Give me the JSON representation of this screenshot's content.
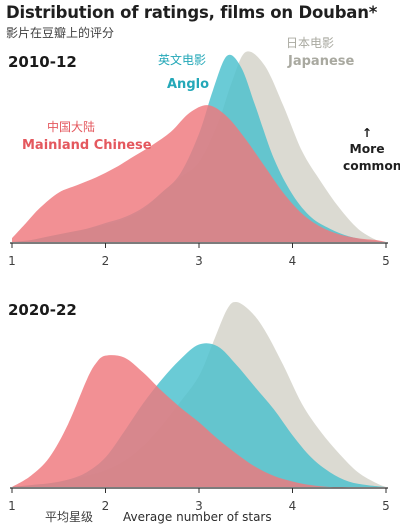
{
  "header": {
    "title": "Distribution of ratings, films on Douban*",
    "subtitle_zh": "影片在豆瓣上的评分"
  },
  "annotation": {
    "arrow": "↑",
    "line1": "More",
    "line2": "common"
  },
  "xlabel": {
    "zh": "平均星级",
    "en": "Average number of stars"
  },
  "colors": {
    "mainland": "#ef777d",
    "anglo": "#49bfcd",
    "japanese": "#d3d2c8",
    "mainland_label": "#e4585e",
    "anglo_label": "#24a8b8",
    "japanese_label": "#a9a9a0",
    "axis": "#2f2f2f"
  },
  "chart_data": [
    {
      "type": "area",
      "title": "2010-12",
      "xlabel": "Average number of stars",
      "ylabel": "",
      "xlim": [
        1,
        5
      ],
      "ylim": [
        0,
        1
      ],
      "x_ticks": [
        1,
        2,
        3,
        4,
        5
      ],
      "series": [
        {
          "name": "Japanese",
          "name_zh": "日本电影",
          "color_key": "japanese",
          "x": [
            1.0,
            1.2,
            1.4,
            1.6,
            1.8,
            2.0,
            2.2,
            2.4,
            2.6,
            2.8,
            3.0,
            3.2,
            3.35,
            3.5,
            3.7,
            3.9,
            4.1,
            4.3,
            4.5,
            4.7,
            4.9,
            5.0
          ],
          "y": [
            0.0,
            0.01,
            0.03,
            0.05,
            0.07,
            0.09,
            0.12,
            0.17,
            0.26,
            0.34,
            0.42,
            0.62,
            0.84,
            1.0,
            0.93,
            0.72,
            0.48,
            0.32,
            0.18,
            0.07,
            0.01,
            0.0
          ]
        },
        {
          "name": "Anglo",
          "name_zh": "英文电影",
          "color_key": "anglo",
          "x": [
            1.0,
            1.2,
            1.4,
            1.6,
            1.8,
            2.0,
            2.2,
            2.4,
            2.6,
            2.8,
            3.0,
            3.15,
            3.3,
            3.45,
            3.6,
            3.8,
            4.0,
            4.2,
            4.4,
            4.6,
            4.8,
            5.0
          ],
          "y": [
            0.0,
            0.01,
            0.03,
            0.05,
            0.07,
            0.1,
            0.13,
            0.18,
            0.26,
            0.36,
            0.57,
            0.8,
            0.98,
            0.92,
            0.72,
            0.44,
            0.25,
            0.13,
            0.07,
            0.03,
            0.01,
            0.0
          ]
        },
        {
          "name": "Mainland Chinese",
          "name_zh": "中国大陆",
          "color_key": "mainland",
          "x": [
            1.0,
            1.15,
            1.3,
            1.5,
            1.7,
            1.9,
            2.1,
            2.3,
            2.5,
            2.7,
            2.9,
            3.1,
            3.3,
            3.5,
            3.7,
            3.9,
            4.1,
            4.3,
            4.5,
            4.7,
            4.9,
            5.0
          ],
          "y": [
            0.02,
            0.1,
            0.18,
            0.26,
            0.3,
            0.34,
            0.39,
            0.45,
            0.51,
            0.58,
            0.68,
            0.72,
            0.66,
            0.54,
            0.4,
            0.26,
            0.15,
            0.08,
            0.04,
            0.02,
            0.01,
            0.0
          ]
        }
      ]
    },
    {
      "type": "area",
      "title": "2020-22",
      "xlabel": "Average number of stars",
      "ylabel": "",
      "xlim": [
        1,
        5
      ],
      "ylim": [
        0,
        1
      ],
      "x_ticks": [
        1,
        2,
        3,
        4,
        5
      ],
      "series": [
        {
          "name": "Japanese",
          "name_zh": "日本电影",
          "color_key": "japanese",
          "x": [
            1.0,
            1.2,
            1.4,
            1.6,
            1.8,
            2.0,
            2.2,
            2.4,
            2.6,
            2.8,
            3.0,
            3.15,
            3.3,
            3.4,
            3.55,
            3.7,
            3.9,
            4.1,
            4.3,
            4.5,
            4.7,
            4.9,
            5.0
          ],
          "y": [
            0.0,
            0.01,
            0.02,
            0.04,
            0.06,
            0.09,
            0.14,
            0.22,
            0.33,
            0.46,
            0.6,
            0.78,
            0.96,
            1.0,
            0.95,
            0.85,
            0.66,
            0.45,
            0.3,
            0.18,
            0.08,
            0.02,
            0.0
          ]
        },
        {
          "name": "Anglo",
          "name_zh": "英文电影",
          "color_key": "anglo",
          "x": [
            1.0,
            1.2,
            1.4,
            1.6,
            1.8,
            2.0,
            2.2,
            2.4,
            2.6,
            2.8,
            3.0,
            3.2,
            3.4,
            3.6,
            3.8,
            4.0,
            4.2,
            4.4,
            4.6,
            4.8,
            5.0
          ],
          "y": [
            0.0,
            0.01,
            0.02,
            0.04,
            0.08,
            0.16,
            0.3,
            0.45,
            0.58,
            0.69,
            0.77,
            0.76,
            0.66,
            0.54,
            0.42,
            0.28,
            0.16,
            0.08,
            0.03,
            0.01,
            0.0
          ]
        },
        {
          "name": "Mainland Chinese",
          "name_zh": "中国大陆",
          "color_key": "mainland",
          "x": [
            1.0,
            1.2,
            1.4,
            1.6,
            1.8,
            1.9,
            2.0,
            2.2,
            2.4,
            2.6,
            2.8,
            3.0,
            3.2,
            3.4,
            3.6,
            3.8,
            4.0,
            4.2,
            4.4,
            4.6,
            4.8,
            5.0
          ],
          "y": [
            0.0,
            0.06,
            0.16,
            0.34,
            0.58,
            0.67,
            0.71,
            0.7,
            0.62,
            0.52,
            0.43,
            0.35,
            0.26,
            0.18,
            0.11,
            0.06,
            0.03,
            0.01,
            0.0,
            0.0,
            0.0,
            0.0
          ]
        }
      ]
    }
  ]
}
